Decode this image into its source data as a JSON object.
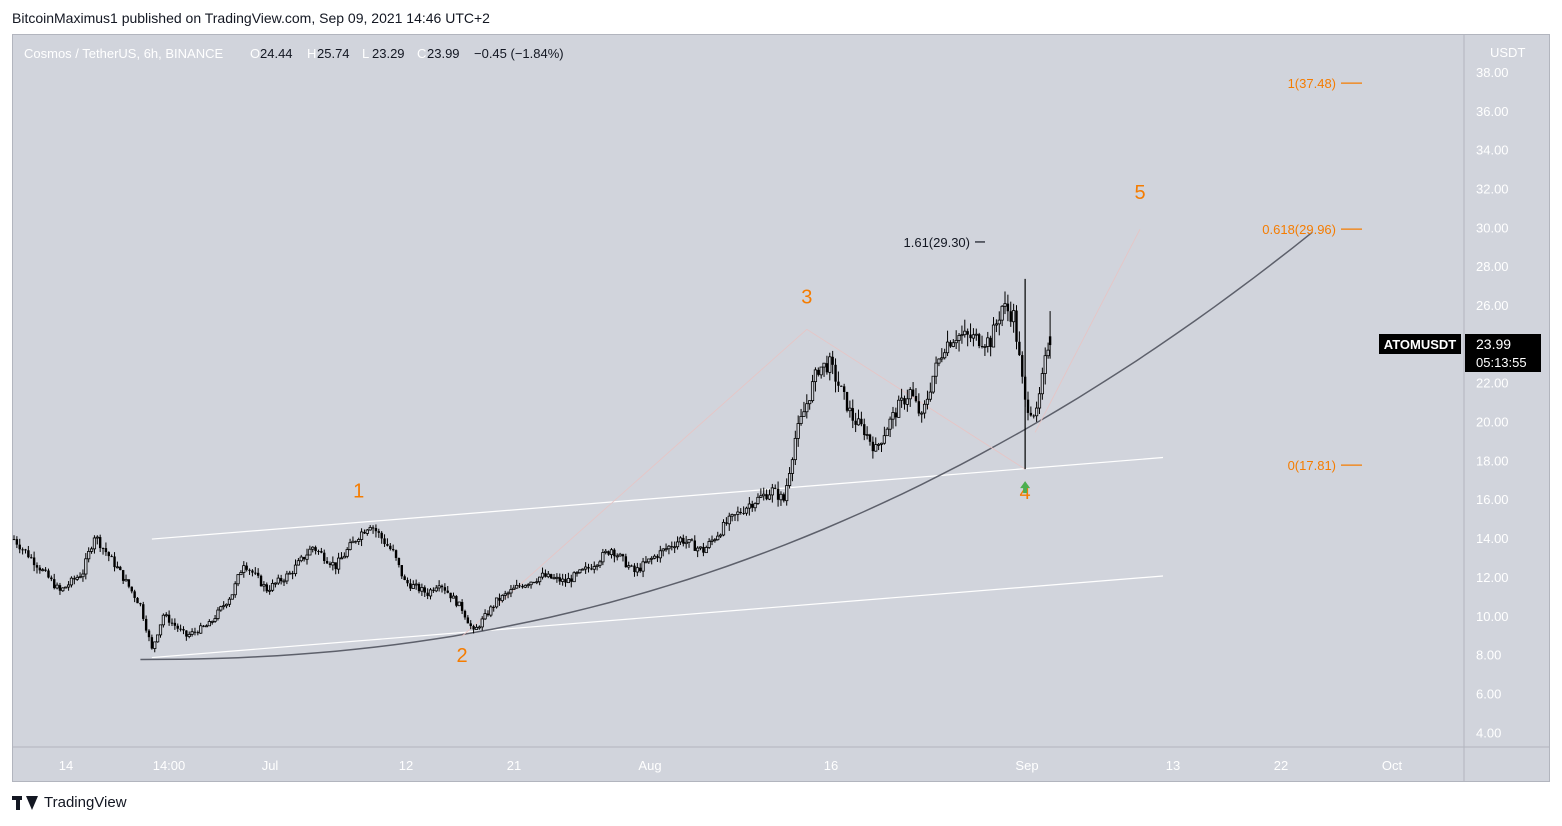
{
  "header": {
    "publisher_line": "BitcoinMaximus1 published on TradingView.com, Sep 09, 2021 14:46 UTC+2"
  },
  "footer": {
    "brand": "TradingView"
  },
  "symbol_bar": {
    "name": "Cosmos / TetherUS, 6h, BINANCE",
    "open_label": "O",
    "open": "24.44",
    "high_label": "H",
    "high": "25.74",
    "low_label": "L",
    "low": "23.29",
    "close_label": "C",
    "close": "23.99",
    "change": "−0.45 (−1.84%)"
  },
  "price_axis": {
    "currency": "USDT",
    "ticks": [
      "38.00",
      "36.00",
      "34.00",
      "32.00",
      "30.00",
      "28.00",
      "26.00",
      "24.00",
      "22.00",
      "20.00",
      "18.00",
      "16.00",
      "14.00",
      "12.00",
      "10.00",
      "8.00",
      "6.00",
      "4.00"
    ]
  },
  "time_axis": {
    "ticks": [
      "14",
      "14:00",
      "Jul",
      "12",
      "21",
      "Aug",
      "16",
      "Sep",
      "13",
      "22",
      "Oct"
    ]
  },
  "price_tag": {
    "symbol": "ATOMUSDT",
    "price": "23.99",
    "countdown": "05:13:55"
  },
  "fib_labels": {
    "top": "1(37.48)",
    "mid": "0.618(29.96)",
    "bottom": "0(17.81)",
    "ext": "1.61(29.30)"
  },
  "waves": [
    "1",
    "2",
    "3",
    "4",
    "5"
  ],
  "colors": {
    "chart_bg": "#d1d4dc",
    "candle": "#000000",
    "wave_label": "#f57c00",
    "fib": "#f57c00",
    "channel": "#ffffff",
    "curve": "#5d606b",
    "arrow": "#4caf50",
    "price_tag_bg": "#000000"
  },
  "chart_data": {
    "type": "candlestick",
    "title": "Cosmos / TetherUS, 6h, BINANCE",
    "y_unit": "USDT",
    "ylim": [
      3.2,
      40.2
    ],
    "grid": false,
    "start_anchor_points": [
      [
        "2021-06-11",
        14.0
      ],
      [
        "2021-06-13",
        12.7
      ],
      [
        "2021-06-15",
        11.3
      ],
      [
        "2021-06-17",
        12.3
      ],
      [
        "2021-06-18",
        14.2
      ],
      [
        "2021-06-20",
        12.5
      ],
      [
        "2021-06-22",
        10.6
      ],
      [
        "2021-06-23",
        8.3
      ],
      [
        "2021-06-24",
        10.1
      ],
      [
        "2021-06-26",
        9.0
      ],
      [
        "2021-06-28",
        9.6
      ],
      [
        "2021-06-30",
        11.2
      ],
      [
        "2021-07-01",
        12.8
      ],
      [
        "2021-07-03",
        11.4
      ],
      [
        "2021-07-05",
        12.2
      ],
      [
        "2021-07-07",
        13.6
      ],
      [
        "2021-07-09",
        12.6
      ],
      [
        "2021-07-11",
        14.2
      ],
      [
        "2021-07-12",
        14.8
      ],
      [
        "2021-07-14",
        13.3
      ],
      [
        "2021-07-15",
        11.8
      ],
      [
        "2021-07-17",
        11.2
      ],
      [
        "2021-07-18",
        11.8
      ],
      [
        "2021-07-20",
        10.4
      ],
      [
        "2021-07-21",
        9.2
      ],
      [
        "2021-07-23",
        10.8
      ],
      [
        "2021-07-25",
        11.6
      ],
      [
        "2021-07-27",
        12.1
      ],
      [
        "2021-07-29",
        11.8
      ],
      [
        "2021-07-31",
        12.5
      ],
      [
        "2021-08-02",
        13.5
      ],
      [
        "2021-08-04",
        12.3
      ],
      [
        "2021-08-06",
        13.2
      ],
      [
        "2021-08-08",
        14.0
      ],
      [
        "2021-08-10",
        13.4
      ],
      [
        "2021-08-12",
        14.8
      ],
      [
        "2021-08-14",
        15.8
      ],
      [
        "2021-08-16",
        16.5
      ],
      [
        "2021-08-17",
        16.0
      ],
      [
        "2021-08-18",
        19.2
      ],
      [
        "2021-08-19",
        21.0
      ],
      [
        "2021-08-20",
        22.8
      ],
      [
        "2021-08-21",
        23.0
      ],
      [
        "2021-08-22",
        21.6
      ],
      [
        "2021-08-23",
        20.2
      ],
      [
        "2021-08-24",
        19.6
      ],
      [
        "2021-08-25",
        18.6
      ],
      [
        "2021-08-26",
        19.8
      ],
      [
        "2021-08-27",
        20.8
      ],
      [
        "2021-08-28",
        21.6
      ],
      [
        "2021-08-29",
        20.2
      ],
      [
        "2021-08-30",
        22.4
      ],
      [
        "2021-08-31",
        24.0
      ],
      [
        "2021-09-01",
        24.5
      ],
      [
        "2021-09-02",
        24.4
      ],
      [
        "2021-09-03",
        24.3
      ],
      [
        "2021-09-04",
        24.2
      ],
      [
        "2021-09-05",
        26.0
      ],
      [
        "2021-09-06",
        25.5
      ],
      [
        "2021-09-07",
        21.0
      ],
      [
        "2021-09-08",
        20.4
      ],
      [
        "2021-09-09",
        23.99
      ]
    ],
    "last_candle": {
      "open": 24.44,
      "high": 25.74,
      "low": 23.29,
      "close": 23.99
    },
    "fibonacci": [
      {
        "level": "1",
        "price": 37.48
      },
      {
        "level": "0.618",
        "price": 29.96
      },
      {
        "level": "0",
        "price": 17.81
      },
      {
        "level": "1.61",
        "price": 29.3
      }
    ],
    "wave_points": [
      {
        "label": "1",
        "date": "2021-07-11",
        "price": 14.8
      },
      {
        "label": "2",
        "date": "2021-07-20",
        "price": 9.0
      },
      {
        "label": "3",
        "date": "2021-08-19",
        "price": 24.8
      },
      {
        "label": "4",
        "date": "2021-09-07",
        "price": 17.6
      },
      {
        "label": "5",
        "date": "2021-09-17",
        "price": 29.96
      }
    ],
    "channel_upper": [
      [
        "2021-06-23",
        14.0
      ],
      [
        "2021-09-19",
        18.2
      ]
    ],
    "channel_lower": [
      [
        "2021-06-23",
        7.9
      ],
      [
        "2021-09-19",
        12.1
      ]
    ],
    "parabolic_curve": {
      "start": [
        "2021-06-22",
        7.8
      ],
      "end": [
        "2021-10-02",
        29.8
      ]
    }
  }
}
